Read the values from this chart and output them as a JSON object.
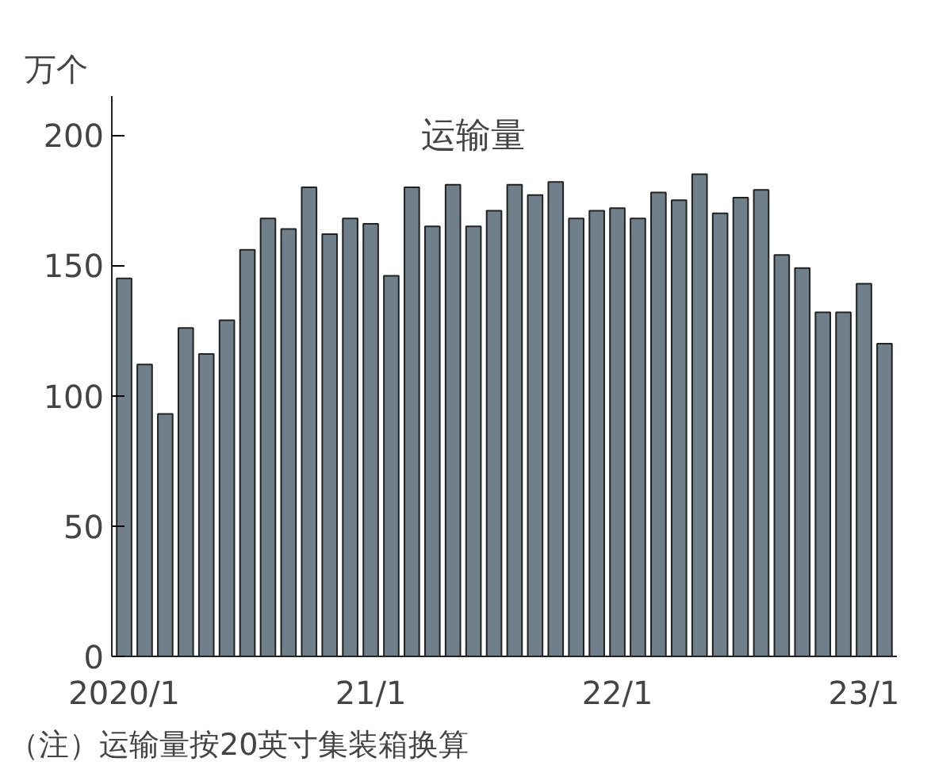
{
  "chart_data": {
    "type": "bar",
    "title": "运输量",
    "ylabel": "万个",
    "categories": [
      "2020/1",
      null,
      null,
      null,
      null,
      null,
      null,
      null,
      null,
      null,
      null,
      null,
      "21/1",
      null,
      null,
      null,
      null,
      null,
      null,
      null,
      null,
      null,
      null,
      null,
      "22/1",
      null,
      null,
      null,
      null,
      null,
      null,
      null,
      null,
      null,
      null,
      null,
      "23/1",
      null
    ],
    "values": [
      145,
      112,
      93,
      126,
      116,
      129,
      156,
      168,
      164,
      180,
      162,
      168,
      166,
      146,
      180,
      165,
      181,
      165,
      171,
      181,
      177,
      182,
      168,
      171,
      172,
      168,
      178,
      175,
      185,
      170,
      176,
      179,
      154,
      149,
      132,
      132,
      143,
      120
    ],
    "color": "#6f808b",
    "ylim": [
      0,
      215
    ],
    "yticks": [
      0,
      50,
      100,
      150,
      200
    ],
    "grid": false,
    "annotations": [
      "（注）运输量按20英寸集装箱换算"
    ]
  }
}
